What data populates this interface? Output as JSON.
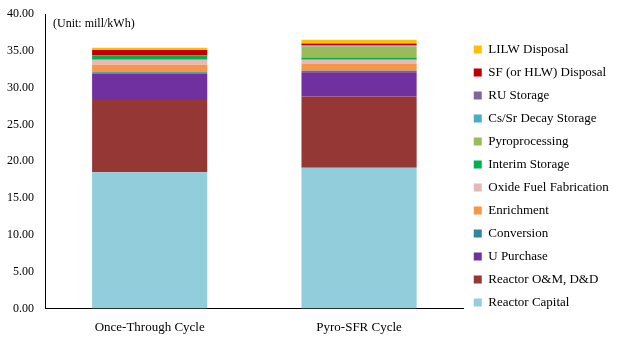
{
  "chart_data": {
    "type": "bar",
    "stacked": true,
    "annotation": "(Unit: mill/kWh)",
    "categories": [
      "Once-Through Cycle",
      "Pyro-SFR Cycle"
    ],
    "series": [
      {
        "name": "Reactor Capital",
        "color": "#92cddc",
        "values": [
          18.5,
          19.1
        ]
      },
      {
        "name": "Reactor O&M, D&D",
        "color": "#953735",
        "values": [
          9.8,
          9.7
        ]
      },
      {
        "name": "U Purchase",
        "color": "#7030a0",
        "values": [
          3.6,
          3.3
        ]
      },
      {
        "name": "Conversion",
        "color": "#31859c",
        "values": [
          0.2,
          0.2
        ]
      },
      {
        "name": "Enrichment",
        "color": "#f79646",
        "values": [
          1.0,
          0.9
        ]
      },
      {
        "name": "Oxide Fuel Fabrication",
        "color": "#e6b9b8",
        "values": [
          0.7,
          0.6
        ]
      },
      {
        "name": "Interim Storage",
        "color": "#00b050",
        "values": [
          0.6,
          0.3
        ]
      },
      {
        "name": "Pyroprocessing",
        "color": "#9bbb59",
        "values": [
          0,
          1.5
        ]
      },
      {
        "name": "Cs/Sr Decay Storage",
        "color": "#4bacc6",
        "values": [
          0,
          0.1
        ]
      },
      {
        "name": "RU Storage",
        "color": "#8064a2",
        "values": [
          0,
          0.1
        ]
      },
      {
        "name": "SF (or HLW) Disposal",
        "color": "#c00000",
        "values": [
          0.7,
          0.2
        ]
      },
      {
        "name": "LILW Disposal",
        "color": "#ffc000",
        "values": [
          0.3,
          0.5
        ]
      }
    ],
    "ylim": [
      0,
      40
    ],
    "yticks": [
      {
        "value": 0,
        "label": "0.00"
      },
      {
        "value": 5,
        "label": "5.00"
      },
      {
        "value": 10,
        "label": "10.00"
      },
      {
        "value": 15,
        "label": "15.00"
      },
      {
        "value": 20,
        "label": "20.00"
      },
      {
        "value": 25,
        "label": "25.00"
      },
      {
        "value": 30,
        "label": "30.00"
      },
      {
        "value": 35,
        "label": "35.00"
      },
      {
        "value": 40,
        "label": "40.00"
      }
    ],
    "grid": false,
    "legend": "right"
  }
}
